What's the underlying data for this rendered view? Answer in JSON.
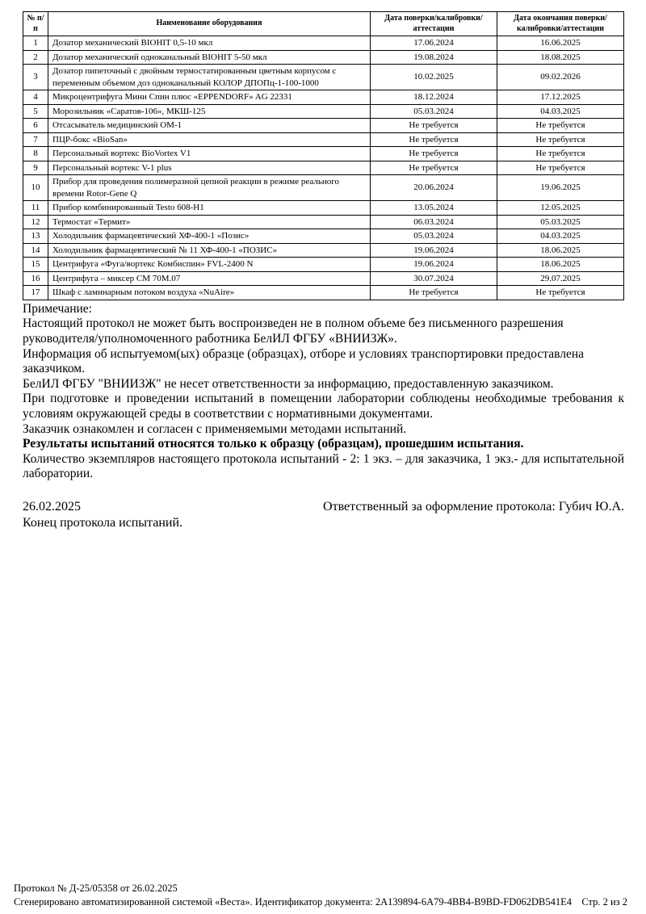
{
  "table": {
    "headers": [
      "№ п/п",
      "Наименование оборудования",
      "Дата поверки/калибровки/аттестации",
      "Дата окончания поверки/калибровки/аттестации"
    ],
    "rows": [
      {
        "num": "1",
        "name": "Дозатор механический BIOHIT 0,5-10 мкл",
        "date": "17.06.2024",
        "date_end": "16.06.2025"
      },
      {
        "num": "2",
        "name": "Дозатор механический одноканальный BIOHIT 5-50 мкл",
        "date": "19.08.2024",
        "date_end": "18.08.2025"
      },
      {
        "num": "3",
        "name": "Дозатор пипеточный с двойным термостатированным цветным корпусом с переменным объемом доз одноканальный КОЛОР ДПОПц-1-100-1000",
        "date": "10.02.2025",
        "date_end": "09.02.2026"
      },
      {
        "num": "4",
        "name": "Микроцентрифуга Мини Спин плюс «EPPENDORF» AG 22331",
        "date": "18.12.2024",
        "date_end": "17.12.2025"
      },
      {
        "num": "5",
        "name": "Морозильник «Саратов-106», МКШ-125",
        "date": "05.03.2024",
        "date_end": "04.03.2025"
      },
      {
        "num": "6",
        "name": "Отсасыватель медицинский ОМ-1",
        "date": "Не требуется",
        "date_end": "Не требуется"
      },
      {
        "num": "7",
        "name": "ПЦР-бокс «BioSan»",
        "date": "Не требуется",
        "date_end": "Не требуется"
      },
      {
        "num": "8",
        "name": "Персональный вортекс BioVortex V1",
        "date": "Не требуется",
        "date_end": "Не требуется"
      },
      {
        "num": "9",
        "name": "Персональный вортекс V-1 plus",
        "date": "Не требуется",
        "date_end": "Не требуется"
      },
      {
        "num": "10",
        "name": "Прибор для проведения полимеразной цепной реакции в режиме реального времени Rotor-Gene Q",
        "date": "20.06.2024",
        "date_end": "19.06.2025"
      },
      {
        "num": "11",
        "name": "Прибор комбинированный Testo 608-H1",
        "date": "13.05.2024",
        "date_end": "12.05.2025"
      },
      {
        "num": "12",
        "name": "Термостат «Термит»",
        "date": "06.03.2024",
        "date_end": "05.03.2025"
      },
      {
        "num": "13",
        "name": "Холодильник фармацевтический ХФ-400-1 «Позис»",
        "date": "05.03.2024",
        "date_end": "04.03.2025"
      },
      {
        "num": "14",
        "name": "Холодильник фармацевтический № 11 ХФ-400-1 «ПОЗИС»",
        "date": "19.06.2024",
        "date_end": "18.06.2025"
      },
      {
        "num": "15",
        "name": "Центрифуга «Фуга/вортекс Комбиспин» FVL-2400 N",
        "date": "19.06.2024",
        "date_end": "18.06.2025"
      },
      {
        "num": "16",
        "name": "Центрифуга – миксер СМ 70М.07",
        "date": "30.07.2024",
        "date_end": "29.07.2025"
      },
      {
        "num": "17",
        "name": "Шкаф с ламинарным потоком воздуха «NuAire»",
        "date": "Не требуется",
        "date_end": "Не требуется"
      }
    ]
  },
  "notes": {
    "title": "Примечание:",
    "p1": "Настоящий протокол не может быть воспроизведен не в полном объеме без письменного разрешения руководителя/уполномоченного работника БелИЛ ФГБУ «ВНИИЗЖ».",
    "p2": "Информация об испытуемом(ых) образце (образцах), отборе и условиях транспортировки предоставлена заказчиком.",
    "p3": "БелИЛ ФГБУ \"ВНИИЗЖ\" не несет ответственности за информацию, предоставленную заказчиком.",
    "p4": "При подготовке и проведении испытаний в помещении лаборатории соблюдены необходимые требования к условиям окружающей среды в соответствии с нормативными документами.",
    "p5": "Заказчик ознакомлен и согласен с применяемыми методами испытаний.",
    "p6": "Результаты испытаний относятся только к образцу (образцам), прошедшим испытания.",
    "p7": "Количество экземпляров настоящего протокола испытаний - 2: 1 экз. – для заказчика, 1 экз.- для испытательной лаборатории."
  },
  "signoff": {
    "date": "26.02.2025",
    "responsible": "Ответственный за оформление протокола: Губич Ю.А.",
    "end_line": "Конец протокола испытаний."
  },
  "footer": {
    "protocol_line": "Протокол № Д-25/05358 от 26.02.2025",
    "generated_line": "Сгенерировано автоматизированной системой «Веста». Идентификатор документа: 2A139894-6A79-4BB4-B9BD-FD062DB541E4",
    "page_number": "Стр. 2 из 2"
  }
}
